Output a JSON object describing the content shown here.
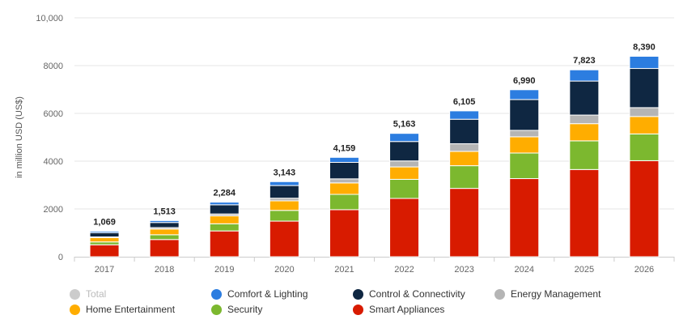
{
  "chart_data": {
    "type": "bar",
    "stacked": true,
    "categories": [
      "2017",
      "2018",
      "2019",
      "2020",
      "2021",
      "2022",
      "2023",
      "2024",
      "2025",
      "2026"
    ],
    "ylabel": "in million USD (US$)",
    "ylim": [
      0,
      10000
    ],
    "yticks": [
      "0",
      "2000",
      "4000",
      "6000",
      "8000",
      "10,000"
    ],
    "grid": true,
    "totals": [
      "1,069",
      "1,513",
      "2,284",
      "3,143",
      "4,159",
      "5,163",
      "6,105",
      "6,990",
      "7,823",
      "8,390"
    ],
    "series": [
      {
        "name": "Smart Appliances",
        "color": "#d81b00",
        "values": [
          500,
          720,
          1080,
          1490,
          1970,
          2440,
          2860,
          3270,
          3650,
          4020
        ]
      },
      {
        "name": "Security",
        "color": "#7cb82f",
        "values": [
          120,
          200,
          300,
          450,
          640,
          800,
          950,
          1070,
          1200,
          1120
        ]
      },
      {
        "name": "Home Entertainment",
        "color": "#ffad00",
        "values": [
          180,
          240,
          330,
          400,
          480,
          520,
          600,
          680,
          720,
          730
        ]
      },
      {
        "name": "Energy Management",
        "color": "#b5b5b5",
        "values": [
          30,
          60,
          80,
          110,
          170,
          250,
          320,
          270,
          360,
          370
        ]
      },
      {
        "name": "Control & Connectivity",
        "color": "#0f2742",
        "values": [
          179,
          213,
          384,
          530,
          689,
          813,
          1025,
          1290,
          1423,
          1640
        ]
      },
      {
        "name": "Comfort & Lighting",
        "color": "#2c7de0",
        "values": [
          60,
          80,
          110,
          163,
          210,
          340,
          350,
          410,
          470,
          510
        ]
      }
    ]
  },
  "legend": [
    {
      "label": "Total",
      "color": "#cccccc",
      "inactive": true
    },
    {
      "label": "Comfort & Lighting",
      "color": "#2c7de0"
    },
    {
      "label": "Control & Connectivity",
      "color": "#0f2742"
    },
    {
      "label": "Energy Management",
      "color": "#b5b5b5"
    },
    {
      "label": "Home Entertainment",
      "color": "#ffad00"
    },
    {
      "label": "Security",
      "color": "#7cb82f"
    },
    {
      "label": "Smart Appliances",
      "color": "#d81b00"
    }
  ]
}
